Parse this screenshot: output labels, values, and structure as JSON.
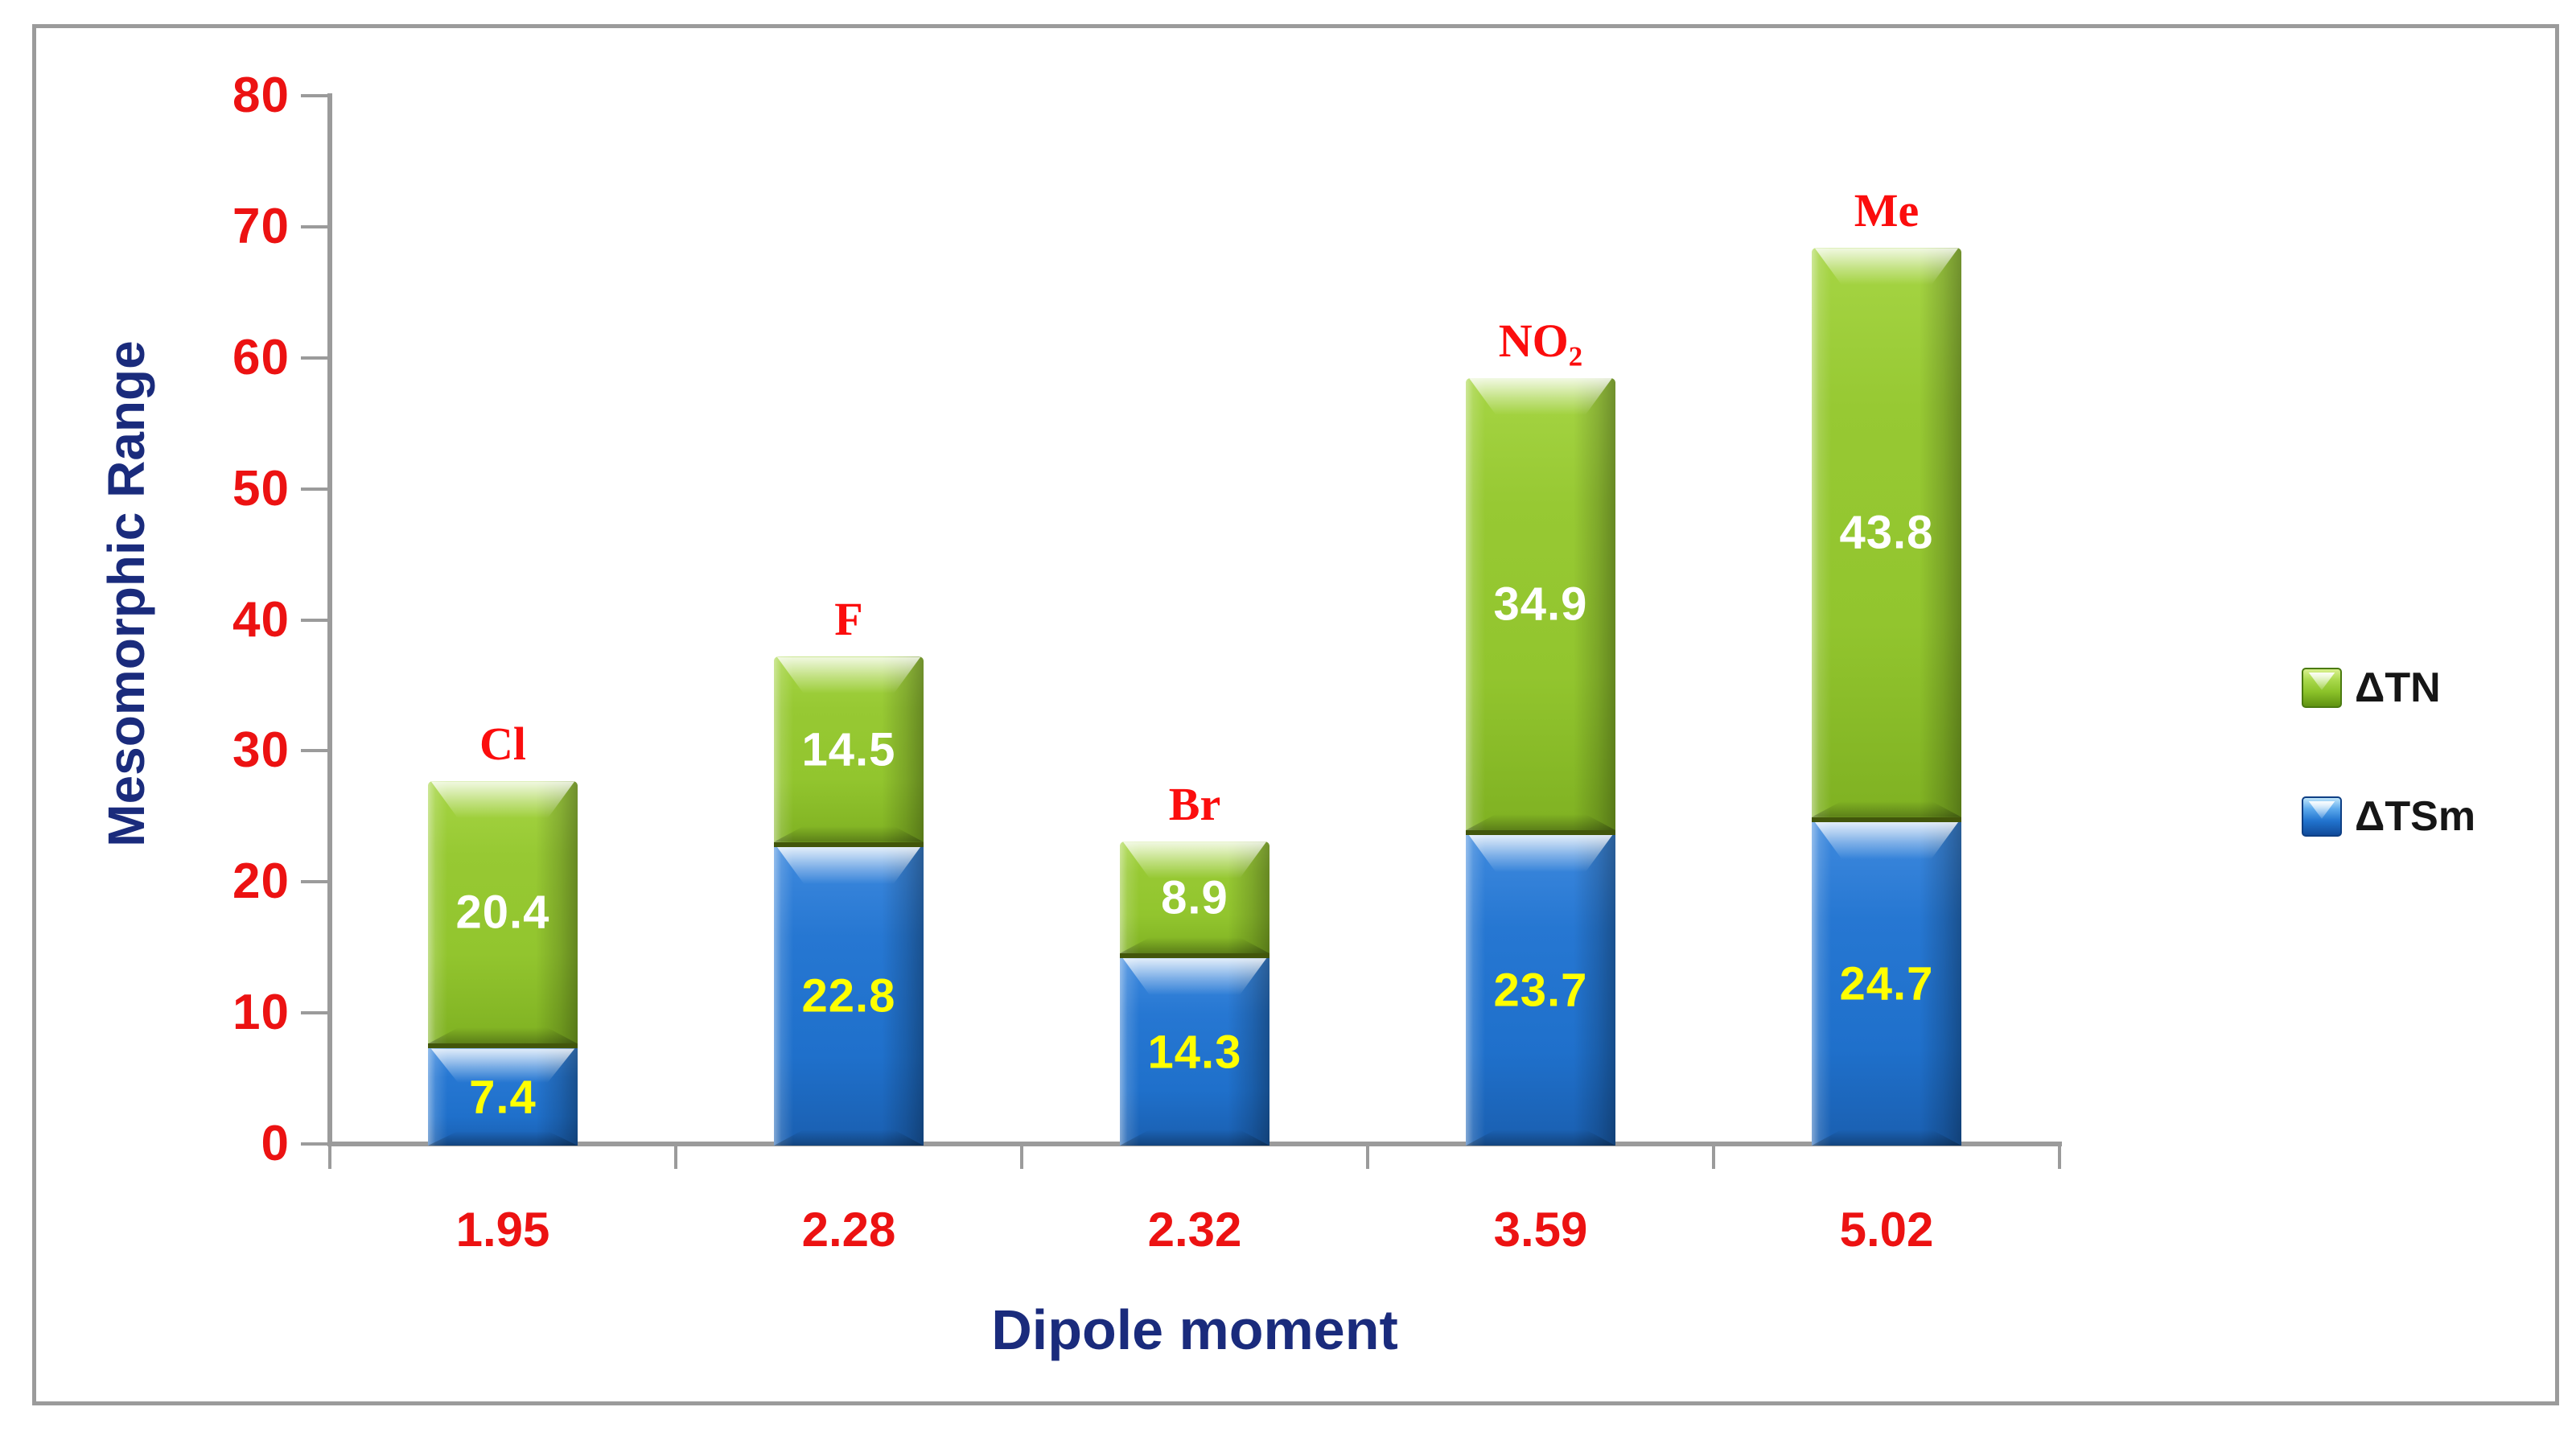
{
  "figure": {
    "background": "#ffffff",
    "frame_color": "#9b9b9b"
  },
  "chart_data": {
    "type": "bar",
    "stacked": true,
    "title": "",
    "xlabel": "Dipole moment",
    "ylabel": "Mesomorphic Range",
    "ylim": [
      0,
      80
    ],
    "ytick_interval": 10,
    "ytick_labels": [
      "0",
      "10",
      "20",
      "30",
      "40",
      "50",
      "60",
      "70",
      "80"
    ],
    "grid": false,
    "legend_position": "right",
    "categories": [
      "1.95",
      "2.28",
      "2.32",
      "3.59",
      "5.02"
    ],
    "bar_top_labels": [
      "Cl",
      "F",
      "Br",
      "NO₂",
      "Me"
    ],
    "series": [
      {
        "name": "ΔTSm",
        "values": [
          7.4,
          22.8,
          14.3,
          23.7,
          24.7
        ],
        "color": "#1f70cb",
        "value_label_color": "#ffff00"
      },
      {
        "name": "ΔTN",
        "values": [
          20.4,
          14.5,
          8.9,
          34.9,
          43.8
        ],
        "color": "#94c72e",
        "value_label_color": "#ffffff"
      }
    ],
    "legend_items": [
      {
        "label": "ΔTN",
        "swatch": "green"
      },
      {
        "label": "ΔTSm",
        "swatch": "blue"
      }
    ],
    "colors": {
      "tick_label": "#ec1212",
      "category_label": "#ec1212",
      "bar_top_label": "#fb0d0d",
      "axis_title": "#1a2b7c",
      "axis_line": "#9b9b9b",
      "legend_text": "#161616"
    }
  }
}
